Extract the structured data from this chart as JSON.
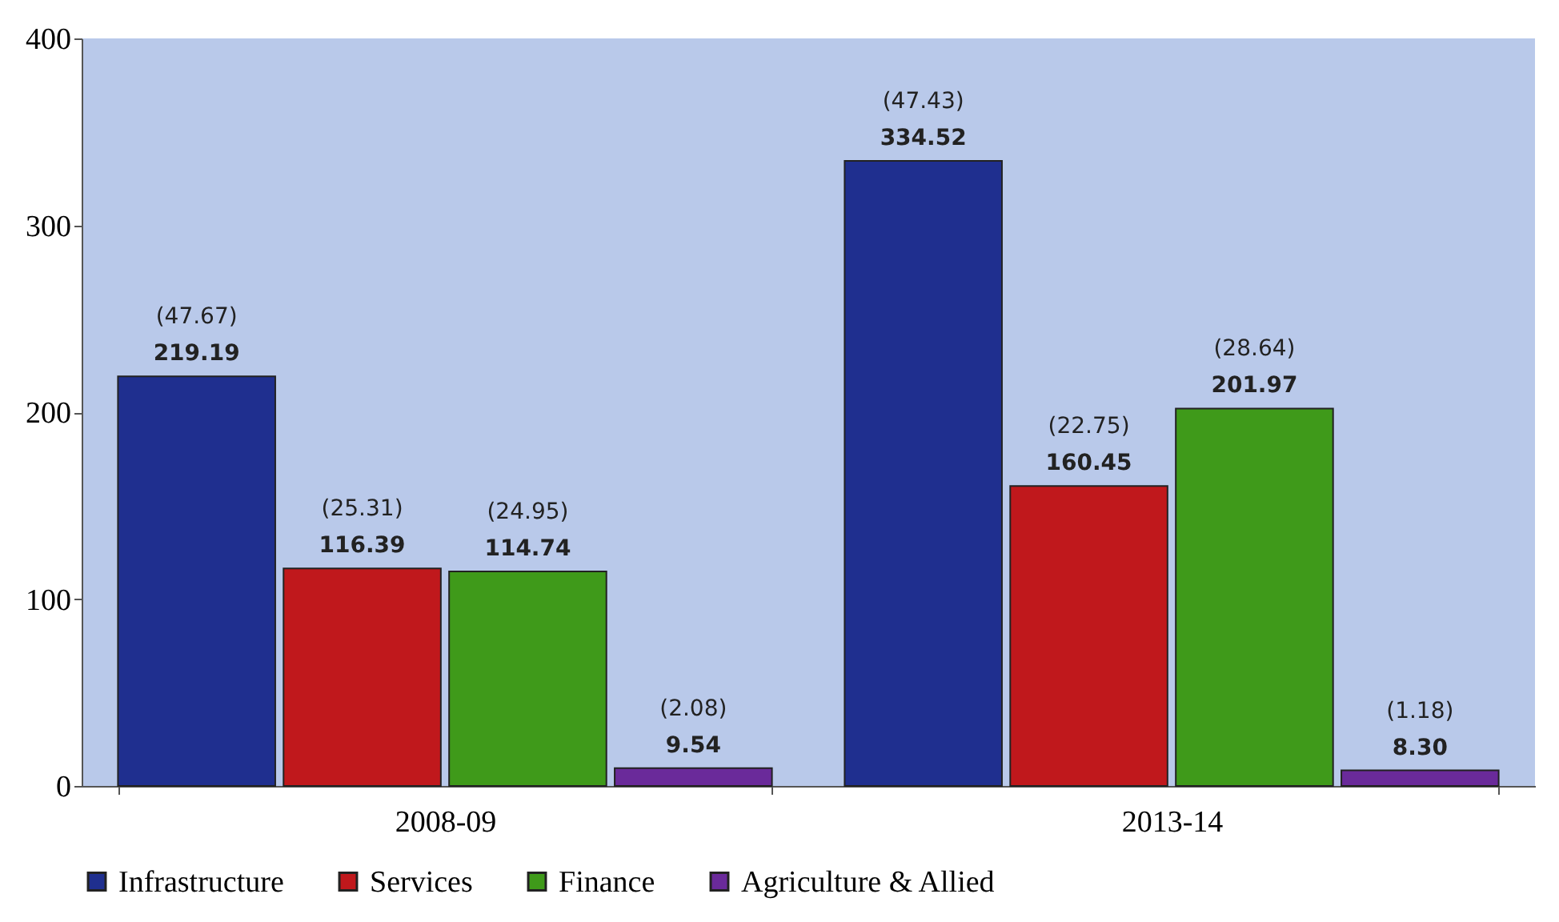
{
  "chart_data": {
    "type": "bar",
    "categories": [
      "2008-09",
      "2013-14"
    ],
    "series": [
      {
        "name": "Infrastructure",
        "color": "#1f2f8f",
        "values": [
          219.19,
          334.52
        ],
        "value_labels": [
          "(47.67)\n219.19",
          "(47.43)\n334.52"
        ]
      },
      {
        "name": "Services",
        "color": "#c0181c",
        "values": [
          116.39,
          160.45
        ],
        "value_labels": [
          "(25.31)\n116.39",
          "(22.75)\n160.45"
        ]
      },
      {
        "name": "Finance",
        "color": "#3f9a1a",
        "values": [
          114.74,
          201.97
        ],
        "value_labels": [
          "(24.95)\n114.74",
          "(28.64)\n201.97"
        ]
      },
      {
        "name": "Agriculture & Allied",
        "color": "#6a2a9a",
        "values": [
          9.54,
          8.3
        ],
        "value_labels": [
          "(2.08)\n9.54",
          "(1.18)\n8.30"
        ]
      }
    ],
    "ylim": [
      0,
      400
    ],
    "yticks": [
      0,
      100,
      200,
      300,
      400
    ],
    "grid": false,
    "legend": "bottom"
  }
}
